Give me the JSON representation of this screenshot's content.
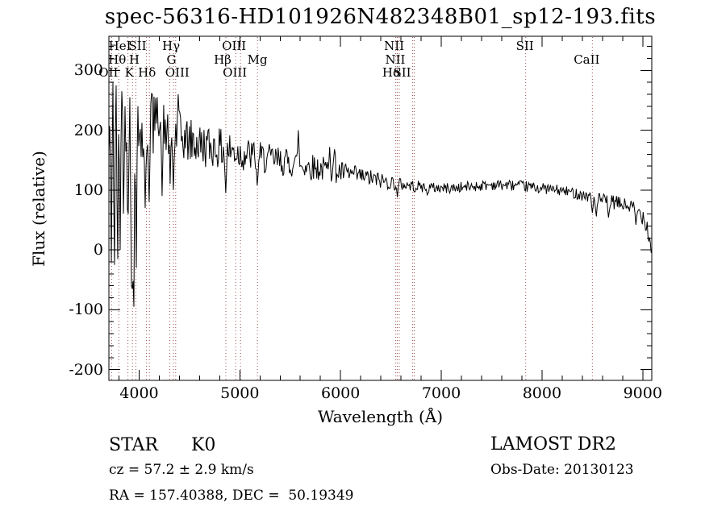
{
  "title": "spec-56316-HD101926N482348B01_sp12-193.fits",
  "axes": {
    "x_label": "Wavelength (Å)",
    "y_label": "Flux (relative)",
    "x_ticks": [
      4000,
      5000,
      6000,
      7000,
      8000,
      9000
    ],
    "y_ticks": [
      -200,
      -100,
      0,
      100,
      200,
      300
    ],
    "x_minor_step": 200,
    "y_minor_step": 20,
    "xlim": [
      3700,
      9090
    ],
    "ylim": [
      -218,
      357
    ]
  },
  "annotations": {
    "object_class": "STAR",
    "subclass": "K0",
    "cz": "cz = 57.2 ± 2.9 km/s",
    "coords": "RA = 157.40388, DEC =  50.19349",
    "survey": "LAMOST DR2",
    "obs_date": "Obs-Date: 20130123"
  },
  "chart_data": {
    "type": "line",
    "title": "spec-56316-HD101926N482348B01_sp12-193.fits",
    "xlabel": "Wavelength (Å)",
    "ylabel": "Flux (relative)",
    "xlim": [
      3700,
      9090
    ],
    "ylim": [
      -218,
      357
    ],
    "grid": false,
    "legend": "none",
    "colors": {
      "spectrum": "#000000",
      "line_marker": "#9b5151",
      "text": "#000000",
      "background": "#ffffff"
    },
    "noise_sample_step_angstrom": 8,
    "noise_seed": 42,
    "envelope_points_wavelength_flux_noise": [
      [
        3700,
        130,
        165
      ],
      [
        3730,
        150,
        140
      ],
      [
        3770,
        170,
        115
      ],
      [
        3810,
        180,
        95
      ],
      [
        3860,
        170,
        85
      ],
      [
        3910,
        150,
        95
      ],
      [
        3945,
        140,
        150
      ],
      [
        3975,
        165,
        90
      ],
      [
        4015,
        190,
        70
      ],
      [
        4070,
        200,
        62
      ],
      [
        4125,
        208,
        57
      ],
      [
        4190,
        205,
        52
      ],
      [
        4260,
        198,
        48
      ],
      [
        4350,
        192,
        44
      ],
      [
        4450,
        185,
        40
      ],
      [
        4550,
        178,
        38
      ],
      [
        4650,
        174,
        36
      ],
      [
        4750,
        171,
        34
      ],
      [
        4850,
        168,
        33
      ],
      [
        4950,
        164,
        31
      ],
      [
        5050,
        160,
        30
      ],
      [
        5200,
        154,
        27
      ],
      [
        5350,
        150,
        25
      ],
      [
        5500,
        145,
        24
      ],
      [
        5650,
        141,
        23
      ],
      [
        5800,
        136,
        22
      ],
      [
        5950,
        131,
        20
      ],
      [
        6100,
        126,
        17
      ],
      [
        6250,
        121,
        15
      ],
      [
        6400,
        116,
        14
      ],
      [
        6550,
        111,
        12
      ],
      [
        6700,
        107,
        10
      ],
      [
        6900,
        104,
        9
      ],
      [
        7100,
        103,
        9
      ],
      [
        7300,
        106,
        9
      ],
      [
        7500,
        109,
        9
      ],
      [
        7700,
        108,
        9
      ],
      [
        7900,
        105,
        9
      ],
      [
        8100,
        101,
        9
      ],
      [
        8300,
        96,
        9
      ],
      [
        8450,
        90,
        10
      ],
      [
        8600,
        83,
        11
      ],
      [
        8750,
        78,
        12
      ],
      [
        8900,
        71,
        13
      ],
      [
        9000,
        58,
        16
      ],
      [
        9045,
        42,
        16
      ],
      [
        9075,
        25,
        12
      ],
      [
        9088,
        5,
        8
      ]
    ],
    "feature_spikes_wavelength_flux": [
      [
        3712,
        295
      ],
      [
        3727,
        -20
      ],
      [
        3741,
        280
      ],
      [
        3756,
        -25
      ],
      [
        3770,
        275
      ],
      [
        3785,
        -15
      ],
      [
        3800,
        280
      ],
      [
        3815,
        0
      ],
      [
        3830,
        265
      ],
      [
        3848,
        35
      ],
      [
        3862,
        240
      ],
      [
        3889,
        60
      ],
      [
        3905,
        255
      ],
      [
        3925,
        -55
      ],
      [
        3934,
        -65
      ],
      [
        3948,
        -95
      ],
      [
        3960,
        230
      ],
      [
        3969,
        -30
      ],
      [
        3990,
        240
      ],
      [
        4056,
        70
      ],
      [
        4102,
        80
      ],
      [
        4121,
        262
      ],
      [
        4180,
        255
      ],
      [
        4227,
        90
      ],
      [
        4305,
        110
      ],
      [
        4341,
        100
      ],
      [
        4390,
        260
      ],
      [
        4861,
        95
      ],
      [
        5175,
        108
      ],
      [
        5578,
        200
      ],
      [
        5890,
        172
      ],
      [
        5940,
        168
      ],
      [
        6563,
        88
      ],
      [
        6860,
        92
      ],
      [
        8498,
        62
      ],
      [
        8542,
        56
      ],
      [
        8662,
        54
      ],
      [
        8930,
        42
      ],
      [
        9060,
        14
      ],
      [
        9082,
        -5
      ]
    ],
    "spectral_lines": [
      {
        "label": "OII",
        "row": 3,
        "wavelengths": [
          3727
        ],
        "dx": -4
      },
      {
        "label": "Hθ",
        "row": 2,
        "wavelengths": [
          3798
        ],
        "dx": -2
      },
      {
        "label": "HeI",
        "row": 1,
        "wavelengths": [
          3889
        ],
        "dx": -10
      },
      {
        "label": "K",
        "row": 3,
        "wavelengths": [
          3934
        ],
        "dx": -4
      },
      {
        "label": "H",
        "row": 2,
        "wavelengths": [
          3968
        ],
        "dx": -2
      },
      {
        "label": "SII",
        "row": 1,
        "wavelengths": [
          4072
        ],
        "dx": -11
      },
      {
        "label": "Hδ",
        "row": 3,
        "wavelengths": [
          4102
        ],
        "dx": -3
      },
      {
        "label": "G",
        "row": 2,
        "wavelengths": [
          4305
        ],
        "dx": 2
      },
      {
        "label": "Hγ",
        "row": 1,
        "wavelengths": [
          4341
        ],
        "dx": -3
      },
      {
        "label": "OIII",
        "row": 3,
        "wavelengths": [
          4363
        ],
        "dx": 2
      },
      {
        "label": "Hβ",
        "row": 2,
        "wavelengths": [
          4861
        ],
        "dx": -4
      },
      {
        "label": "OIII",
        "row": 1,
        "wavelengths": [
          4959
        ],
        "dx": -2
      },
      {
        "label": "OIII",
        "row": 3,
        "wavelengths": [
          5007
        ],
        "dx": -7
      },
      {
        "label": "Mg",
        "row": 2,
        "wavelengths": [
          5175
        ],
        "dx": 0
      },
      {
        "label": "NII",
        "row": 1,
        "wavelengths": [
          6548
        ],
        "dx": -2
      },
      {
        "label": "NII",
        "row": 2,
        "wavelengths": [
          6583
        ],
        "dx": -5
      },
      {
        "label": "Hα",
        "row": 3,
        "wavelengths": [
          6563
        ],
        "dx": -7
      },
      {
        "label": "SII",
        "row": 3,
        "wavelengths": [
          6716,
          6731
        ],
        "dx": -14
      },
      {
        "label": "SII",
        "row": 1,
        "wavelengths": [
          7838
        ],
        "dx": -1
      },
      {
        "label": "CaII",
        "row": 2,
        "wavelengths": [
          8500
        ],
        "dx": -7
      }
    ]
  }
}
